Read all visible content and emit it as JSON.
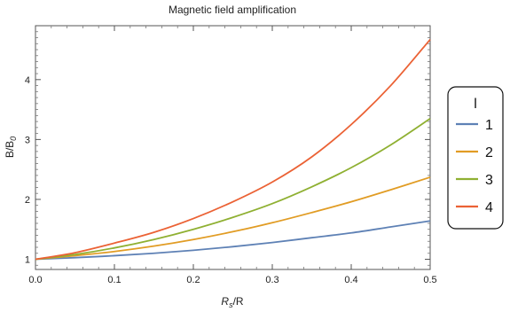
{
  "chart_data": {
    "type": "line",
    "title": "Magnetic field amplification",
    "xlabel_main": "R",
    "xlabel_sub": "s",
    "xlabel_rest": "/R",
    "ylabel_main": "B/B",
    "ylabel_sub": "0",
    "xlim": [
      0,
      0.5
    ],
    "ylim": [
      0.83,
      4.9
    ],
    "xticks": [
      0.0,
      0.1,
      0.2,
      0.3,
      0.4,
      0.5
    ],
    "xtick_labels": [
      "0.0",
      "0.1",
      "0.2",
      "0.3",
      "0.4",
      "0.5"
    ],
    "yticks": [
      1,
      2,
      3,
      4
    ],
    "ytick_labels": [
      "1",
      "2",
      "3",
      "4"
    ],
    "legend_title": "l",
    "legend_position": "right",
    "x": [
      0.0,
      0.05,
      0.1,
      0.15,
      0.2,
      0.25,
      0.3,
      0.35,
      0.4,
      0.45,
      0.5
    ],
    "series": [
      {
        "name": "1",
        "color": "#5e81b5",
        "values": [
          1.0,
          1.027,
          1.06,
          1.1,
          1.15,
          1.21,
          1.28,
          1.36,
          1.44,
          1.54,
          1.64
        ]
      },
      {
        "name": "2",
        "color": "#e19c24",
        "values": [
          1.0,
          1.06,
          1.13,
          1.22,
          1.33,
          1.46,
          1.61,
          1.78,
          1.96,
          2.16,
          2.37
        ]
      },
      {
        "name": "3",
        "color": "#8fb032",
        "values": [
          1.0,
          1.08,
          1.19,
          1.33,
          1.5,
          1.7,
          1.93,
          2.21,
          2.53,
          2.91,
          3.35
        ]
      },
      {
        "name": "4",
        "color": "#eb6235",
        "values": [
          1.0,
          1.11,
          1.27,
          1.45,
          1.68,
          1.96,
          2.29,
          2.71,
          3.25,
          3.9,
          4.67
        ]
      }
    ]
  }
}
